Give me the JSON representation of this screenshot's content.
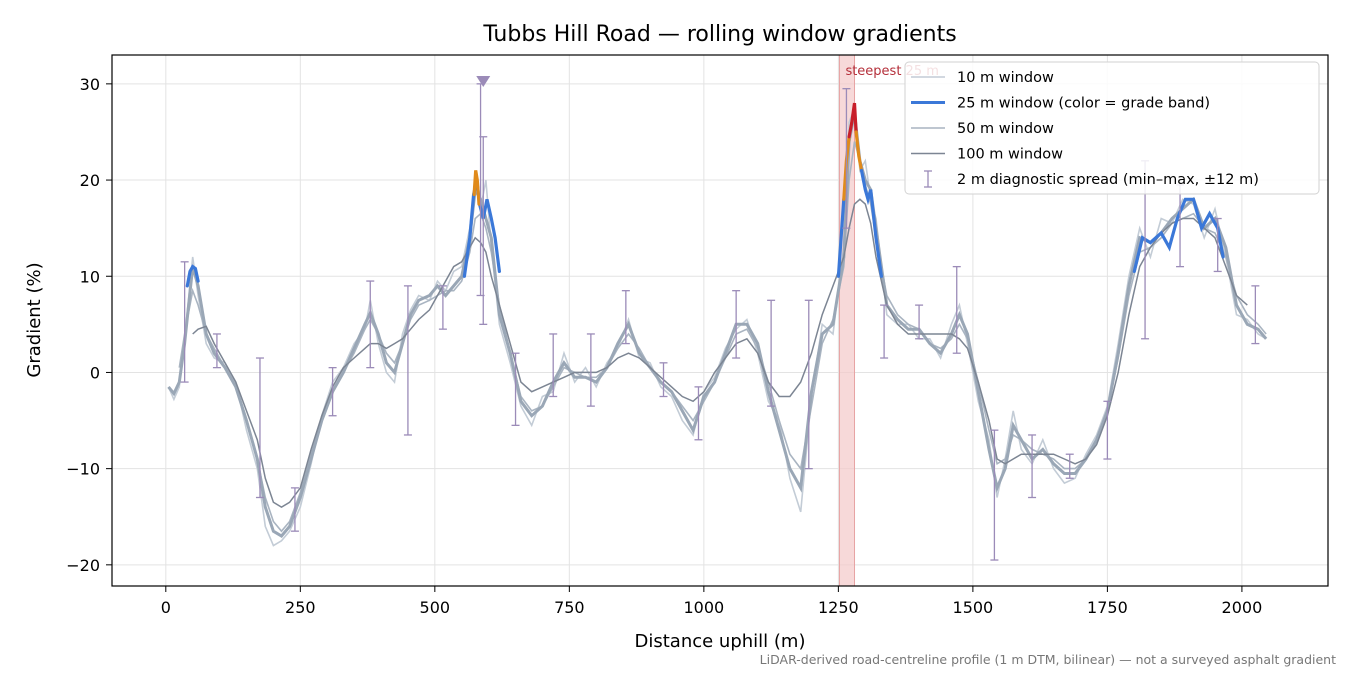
{
  "chart_data": {
    "type": "line",
    "title": "Tubbs Hill Road — rolling window gradients",
    "xlabel": "Distance uphill (m)",
    "ylabel": "Gradient (%)",
    "footnote": "LiDAR-derived road-centreline profile (1 m DTM, bilinear) — not a surveyed asphalt gradient",
    "xlim": [
      -100,
      2160
    ],
    "ylim": [
      -22.2,
      33.0
    ],
    "xticks": [
      0,
      250,
      500,
      750,
      1000,
      1250,
      1500,
      1750,
      2000
    ],
    "yticks": [
      -20,
      -10,
      0,
      10,
      20,
      30
    ],
    "grid": true,
    "legend_position": "top-right",
    "colors": {
      "w10": "#c3ccd6",
      "w25_base": "#9aa7b6",
      "w25_band_blue": "#3b78d8",
      "w25_band_orange": "#e08a1a",
      "w25_band_red": "#c81e2a",
      "w50": "#a9b4c1",
      "w100": "#7c8593",
      "spread": "#9b8bb8",
      "steepest_band": "#f3c9c9",
      "steepest_text": "#b5303b"
    },
    "legend": [
      {
        "label": "10 m window",
        "style": "w10"
      },
      {
        "label": "25 m window (color = grade band)",
        "style": "w25"
      },
      {
        "label": "50 m window",
        "style": "w50"
      },
      {
        "label": "100 m window",
        "style": "w100"
      },
      {
        "label": "2 m diagnostic spread (min–max, ±12 m)",
        "style": "spread"
      }
    ],
    "steepest": {
      "label": "steepest 25 m",
      "x0": 1252,
      "x1": 1280
    },
    "marker_peak": {
      "x": 590,
      "y": 30.3
    },
    "series": {
      "x": [
        5,
        15,
        25,
        35,
        50,
        60,
        75,
        90,
        110,
        130,
        150,
        170,
        185,
        200,
        215,
        230,
        250,
        270,
        290,
        310,
        330,
        350,
        370,
        380,
        395,
        410,
        425,
        440,
        455,
        470,
        490,
        505,
        520,
        535,
        550,
        565,
        575,
        585,
        595,
        605,
        620,
        640,
        660,
        680,
        700,
        720,
        740,
        760,
        780,
        800,
        820,
        840,
        860,
        880,
        900,
        920,
        940,
        960,
        980,
        1000,
        1020,
        1040,
        1060,
        1080,
        1100,
        1120,
        1140,
        1160,
        1180,
        1200,
        1220,
        1240,
        1260,
        1270,
        1280,
        1290,
        1300,
        1310,
        1320,
        1340,
        1360,
        1380,
        1400,
        1420,
        1440,
        1460,
        1475,
        1490,
        1510,
        1530,
        1545,
        1560,
        1575,
        1590,
        1610,
        1630,
        1650,
        1670,
        1690,
        1710,
        1730,
        1750,
        1770,
        1790,
        1810,
        1830,
        1850,
        1870,
        1890,
        1910,
        1930,
        1950,
        1970,
        1990,
        2010,
        2030,
        2045
      ],
      "w25": [
        -1.5,
        -2.2,
        -1.0,
        3.0,
        11.0,
        9.0,
        4.0,
        2.0,
        0.5,
        -1.5,
        -5.0,
        -9.0,
        -14.0,
        -16.5,
        -17.0,
        -16.0,
        -13.0,
        -9.0,
        -5.0,
        -2.0,
        0.0,
        2.5,
        5.0,
        6.2,
        4.0,
        1.0,
        0.0,
        3.0,
        6.0,
        7.5,
        8.0,
        9.0,
        8.0,
        9.0,
        10.0,
        14.0,
        19.0,
        18.0,
        16.0,
        14.0,
        6.0,
        2.0,
        -3.0,
        -4.5,
        -3.5,
        -1.0,
        1.0,
        -0.5,
        -0.5,
        -1.0,
        0.5,
        3.0,
        5.0,
        2.0,
        0.5,
        -1.0,
        -2.0,
        -4.0,
        -6.0,
        -2.5,
        -1.0,
        2.0,
        5.0,
        5.0,
        3.0,
        -2.0,
        -6.0,
        -10.0,
        -12.0,
        -2.0,
        4.0,
        5.0,
        12.0,
        24.0,
        27.0,
        22.0,
        20.0,
        19.0,
        15.0,
        7.0,
        5.5,
        4.5,
        4.5,
        3.0,
        2.0,
        4.0,
        6.0,
        4.0,
        -2.0,
        -8.0,
        -12.0,
        -10.0,
        -5.5,
        -7.0,
        -9.0,
        -8.0,
        -9.5,
        -10.5,
        -10.5,
        -9.0,
        -7.0,
        -4.0,
        2.0,
        9.0,
        14.0,
        13.5,
        14.5,
        16.0,
        17.0,
        18.0,
        15.0,
        16.0,
        13.0,
        7.0,
        5.0,
        4.5,
        3.5
      ],
      "w10": [
        -1.5,
        -2.8,
        -1.5,
        3.5,
        12.0,
        8.0,
        3.0,
        1.5,
        1.0,
        -1.0,
        -6.0,
        -10.0,
        -16.0,
        -18.0,
        -17.5,
        -16.5,
        -14.0,
        -9.5,
        -4.5,
        -1.0,
        0.5,
        3.0,
        4.5,
        7.5,
        3.0,
        0.0,
        -1.0,
        4.0,
        6.5,
        8.0,
        7.5,
        9.5,
        8.5,
        10.5,
        11.0,
        15.0,
        20.0,
        17.0,
        20.0,
        13.0,
        5.0,
        1.0,
        -3.5,
        -5.5,
        -2.5,
        -2.0,
        2.0,
        -1.0,
        0.5,
        -1.5,
        1.0,
        2.5,
        5.5,
        1.5,
        1.0,
        -1.5,
        -2.5,
        -5.0,
        -6.5,
        -2.0,
        -0.5,
        2.5,
        4.5,
        5.5,
        2.0,
        -3.0,
        -5.0,
        -11.0,
        -14.5,
        -2.5,
        5.0,
        4.0,
        13.0,
        26.0,
        27.5,
        21.0,
        22.0,
        18.0,
        16.0,
        6.0,
        5.0,
        5.0,
        3.5,
        3.5,
        1.5,
        5.0,
        7.0,
        3.0,
        -3.0,
        -7.0,
        -13.0,
        -9.0,
        -4.0,
        -8.0,
        -9.5,
        -7.0,
        -10.0,
        -11.5,
        -11.0,
        -8.5,
        -6.5,
        -3.5,
        3.0,
        10.0,
        15.0,
        12.0,
        16.0,
        15.5,
        18.0,
        17.5,
        14.0,
        17.0,
        12.0,
        6.0,
        5.5,
        4.0,
        3.5
      ],
      "w50": [
        null,
        null,
        0.5,
        4.0,
        8.5,
        7.0,
        4.0,
        2.5,
        0.5,
        -1.5,
        -5.0,
        -9.0,
        -13.0,
        -15.5,
        -16.5,
        -15.5,
        -12.5,
        -8.5,
        -5.0,
        -2.0,
        0.0,
        2.0,
        4.5,
        5.5,
        4.0,
        2.0,
        1.0,
        3.0,
        5.5,
        7.0,
        7.5,
        8.0,
        8.5,
        8.5,
        9.5,
        12.5,
        16.0,
        16.5,
        15.0,
        12.5,
        7.0,
        2.0,
        -2.5,
        -4.0,
        -3.5,
        -1.5,
        0.5,
        0.0,
        -0.5,
        -0.5,
        0.5,
        2.5,
        4.0,
        2.5,
        0.5,
        -1.0,
        -2.0,
        -3.5,
        -5.0,
        -3.0,
        -1.0,
        1.5,
        4.0,
        4.5,
        2.5,
        -1.0,
        -5.0,
        -8.5,
        -10.0,
        -3.5,
        3.0,
        5.5,
        11.0,
        20.0,
        24.0,
        22.0,
        19.5,
        17.5,
        14.0,
        8.0,
        6.0,
        5.0,
        4.5,
        3.0,
        2.5,
        3.5,
        5.0,
        3.5,
        -1.0,
        -6.0,
        -9.5,
        -9.0,
        -6.5,
        -7.0,
        -8.0,
        -8.5,
        -9.0,
        -10.0,
        -10.0,
        -9.0,
        -7.0,
        -4.0,
        1.5,
        8.0,
        12.5,
        13.0,
        14.0,
        15.5,
        16.0,
        16.5,
        15.0,
        14.5,
        12.0,
        8.0,
        6.0,
        5.0,
        4.0
      ],
      "w100": [
        null,
        null,
        null,
        null,
        4.0,
        4.5,
        4.8,
        3.0,
        1.0,
        -1.0,
        -4.0,
        -7.0,
        -11.0,
        -13.5,
        -14.0,
        -13.5,
        -12.0,
        -8.0,
        -4.5,
        -1.5,
        0.5,
        1.5,
        2.5,
        3.0,
        3.0,
        2.5,
        3.0,
        3.5,
        4.5,
        5.5,
        6.5,
        8.0,
        9.5,
        11.0,
        11.5,
        13.0,
        14.0,
        13.5,
        12.5,
        10.0,
        7.0,
        3.0,
        -1.0,
        -2.0,
        -1.5,
        -1.0,
        -0.5,
        0.0,
        0.0,
        0.0,
        0.5,
        1.5,
        2.0,
        1.5,
        0.5,
        -0.5,
        -1.5,
        -2.5,
        -3.0,
        -2.0,
        0.0,
        1.5,
        3.0,
        3.5,
        2.0,
        -1.0,
        -2.5,
        -2.5,
        -1.0,
        2.0,
        6.0,
        9.0,
        12.0,
        15.0,
        17.5,
        18.0,
        17.5,
        15.5,
        12.0,
        7.0,
        5.0,
        4.0,
        4.0,
        4.0,
        4.0,
        4.0,
        3.5,
        2.5,
        -1.0,
        -5.0,
        -9.0,
        -9.5,
        -9.0,
        -8.5,
        -8.5,
        -8.5,
        -8.5,
        -9.0,
        -9.5,
        -9.0,
        -7.5,
        -4.5,
        0.0,
        6.0,
        11.0,
        13.0,
        14.5,
        15.5,
        16.0,
        16.0,
        15.0,
        14.0,
        11.0,
        8.0,
        7.0,
        null,
        null
      ],
      "w25_bands": [
        {
          "color": "w25_band_blue",
          "x": [
            40,
            45,
            50,
            55,
            60
          ],
          "y": [
            9.0,
            10.5,
            11.0,
            10.8,
            9.5
          ]
        },
        {
          "color": "w25_band_blue",
          "x": [
            555,
            565,
            572,
            578,
            583,
            590,
            597,
            605,
            612,
            620
          ],
          "y": [
            10.0,
            14.0,
            18.5,
            20.0,
            17.5,
            16.0,
            18.0,
            16.0,
            14.0,
            10.5
          ]
        },
        {
          "color": "w25_band_orange",
          "x": [
            573,
            576,
            579,
            582
          ],
          "y": [
            18.5,
            21.0,
            20.0,
            17.5
          ]
        },
        {
          "color": "w25_band_blue",
          "x": [
            1250,
            1255,
            1260
          ],
          "y": [
            10.0,
            14.0,
            18.0
          ]
        },
        {
          "color": "w25_band_orange",
          "x": [
            1260,
            1265,
            1270
          ],
          "y": [
            18.0,
            22.0,
            24.5
          ]
        },
        {
          "color": "w25_band_red",
          "x": [
            1270,
            1275,
            1280,
            1283
          ],
          "y": [
            24.5,
            26.0,
            28.0,
            25.0
          ]
        },
        {
          "color": "w25_band_orange",
          "x": [
            1283,
            1288,
            1293
          ],
          "y": [
            25.0,
            22.5,
            21.0
          ]
        },
        {
          "color": "w25_band_blue",
          "x": [
            1293,
            1300,
            1305,
            1310,
            1320,
            1330
          ],
          "y": [
            21.0,
            19.0,
            18.0,
            19.0,
            14.0,
            10.0
          ]
        },
        {
          "color": "w25_band_blue",
          "x": [
            1800,
            1815,
            1830,
            1850,
            1865,
            1880,
            1895,
            1910,
            1925,
            1940,
            1955,
            1965
          ],
          "y": [
            10.5,
            14.0,
            13.5,
            14.5,
            13.0,
            16.0,
            18.0,
            18.0,
            15.0,
            16.5,
            15.0,
            12.0
          ]
        }
      ],
      "spread_bars": [
        {
          "x": 35,
          "ymin": -1.0,
          "ymax": 11.5
        },
        {
          "x": 95,
          "ymin": 0.5,
          "ymax": 4.0
        },
        {
          "x": 175,
          "ymin": -13.0,
          "ymax": 1.5
        },
        {
          "x": 240,
          "ymin": -16.5,
          "ymax": -12.0
        },
        {
          "x": 310,
          "ymin": -4.5,
          "ymax": 0.5
        },
        {
          "x": 380,
          "ymin": 0.5,
          "ymax": 9.5
        },
        {
          "x": 450,
          "ymin": -6.5,
          "ymax": 9.0
        },
        {
          "x": 515,
          "ymin": 4.5,
          "ymax": 9.0
        },
        {
          "x": 585,
          "ymin": 8.0,
          "ymax": 30.0
        },
        {
          "x": 590,
          "ymin": 5.0,
          "ymax": 24.5
        },
        {
          "x": 650,
          "ymin": -5.5,
          "ymax": 2.0
        },
        {
          "x": 720,
          "ymin": -2.5,
          "ymax": 4.0
        },
        {
          "x": 790,
          "ymin": -3.5,
          "ymax": 4.0
        },
        {
          "x": 855,
          "ymin": 3.0,
          "ymax": 8.5
        },
        {
          "x": 925,
          "ymin": -2.5,
          "ymax": 1.0
        },
        {
          "x": 990,
          "ymin": -7.0,
          "ymax": -1.5
        },
        {
          "x": 1060,
          "ymin": 1.5,
          "ymax": 8.5
        },
        {
          "x": 1125,
          "ymin": -3.5,
          "ymax": 7.5
        },
        {
          "x": 1195,
          "ymin": -10.0,
          "ymax": 7.5
        },
        {
          "x": 1265,
          "ymin": 15.0,
          "ymax": 29.5
        },
        {
          "x": 1335,
          "ymin": 1.5,
          "ymax": 7.0
        },
        {
          "x": 1400,
          "ymin": 3.5,
          "ymax": 7.0
        },
        {
          "x": 1470,
          "ymin": 2.0,
          "ymax": 11.0
        },
        {
          "x": 1540,
          "ymin": -19.5,
          "ymax": -6.0
        },
        {
          "x": 1610,
          "ymin": -13.0,
          "ymax": -6.5
        },
        {
          "x": 1680,
          "ymin": -11.0,
          "ymax": -8.5
        },
        {
          "x": 1750,
          "ymin": -9.0,
          "ymax": -3.0
        },
        {
          "x": 1820,
          "ymin": 3.5,
          "ymax": 22.0
        },
        {
          "x": 1885,
          "ymin": 11.0,
          "ymax": 19.5
        },
        {
          "x": 1955,
          "ymin": 10.5,
          "ymax": 16.0
        },
        {
          "x": 2025,
          "ymin": 3.0,
          "ymax": 9.0
        }
      ]
    }
  }
}
